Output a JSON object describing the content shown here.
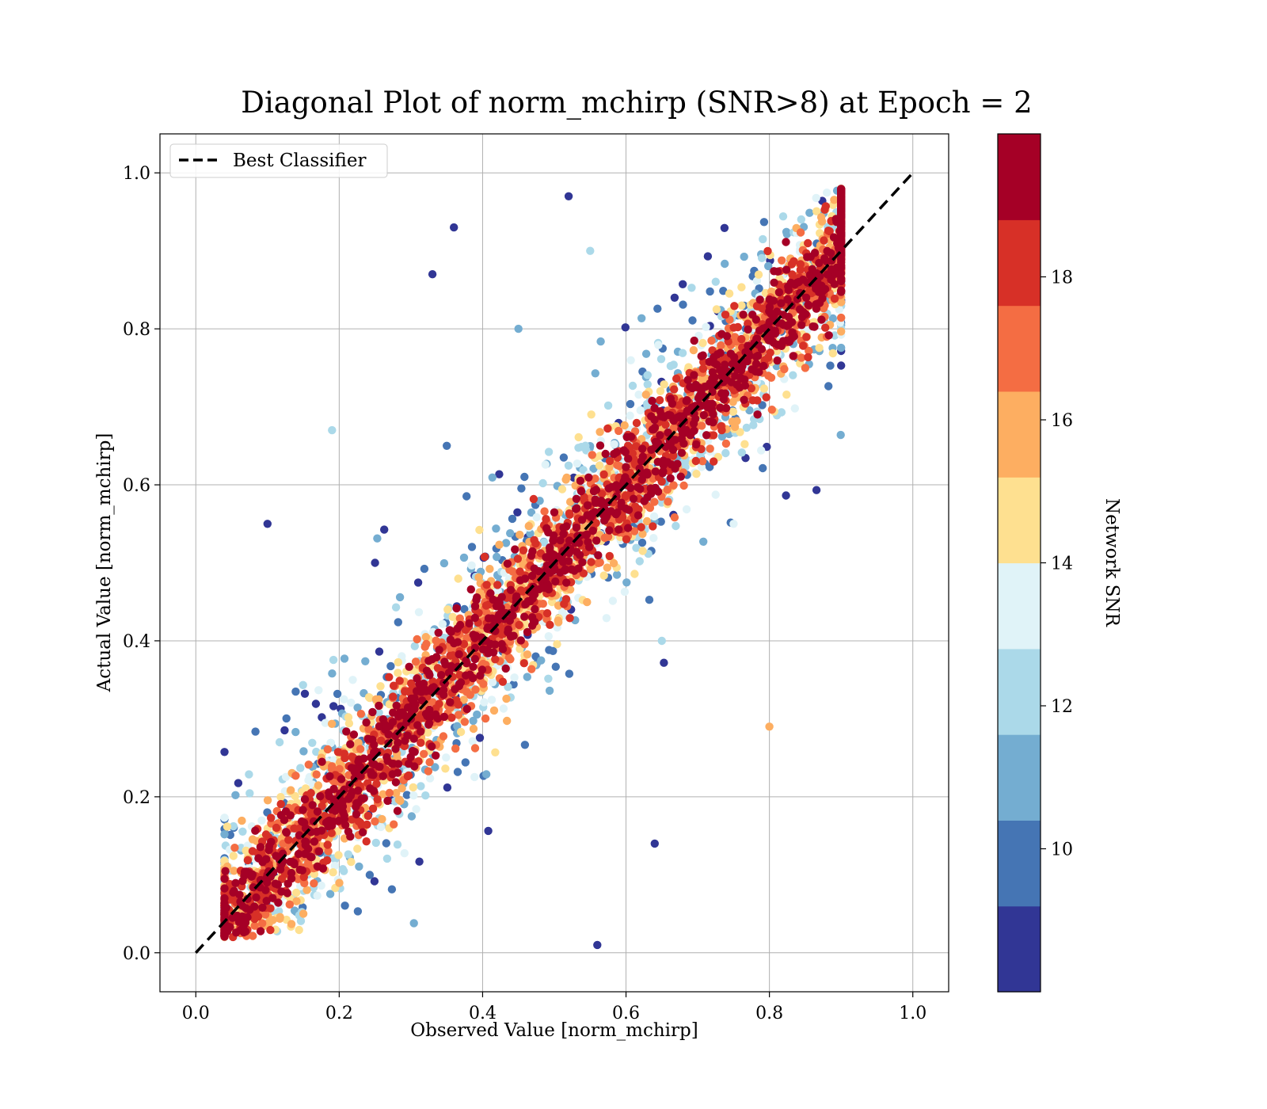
{
  "chart_data": {
    "type": "scatter",
    "title": "Diagonal Plot of norm_mchirp (SNR>8) at Epoch = 2",
    "xlabel": "Observed Value [norm_mchirp]",
    "ylabel": "Actual Value [norm_mchirp]",
    "xlim": [
      -0.05,
      1.05
    ],
    "ylim": [
      -0.05,
      1.05
    ],
    "x_ticks": [
      "0.0",
      "0.2",
      "0.4",
      "0.6",
      "0.8",
      "1.0"
    ],
    "y_ticks": [
      "0.0",
      "0.2",
      "0.4",
      "0.6",
      "0.8",
      "1.0"
    ],
    "grid": true,
    "legend": {
      "placement": "upper-left",
      "entries": [
        "Best Classifier"
      ]
    },
    "reference_line": {
      "name": "Best Classifier",
      "style": "dashed",
      "color": "#000000",
      "x": [
        0.0,
        1.0
      ],
      "y": [
        0.0,
        1.0
      ]
    },
    "colorbar": {
      "label": "Network SNR",
      "range": [
        8,
        20
      ],
      "ticks": [
        "10",
        "12",
        "14",
        "16",
        "18"
      ],
      "tick_values": [
        10,
        12,
        14,
        16,
        18
      ],
      "colors": [
        "#313695",
        "#4575b4",
        "#74add1",
        "#abd9e9",
        "#e0f3f8",
        "#fee090",
        "#fdae61",
        "#f46d43",
        "#d73027",
        "#a50026"
      ]
    },
    "series": [
      {
        "description_points": "scatter of observed vs actual norm_mchirp colored by network SNR; low-SNR points spread widely, high-SNR points cluster along the diagonal",
        "x": [
          0.1,
          0.2,
          0.3,
          0.4,
          0.5,
          0.6,
          0.7,
          0.8,
          0.25,
          0.35,
          0.45,
          0.55,
          0.65,
          0.75,
          0.15,
          0.85,
          0.1,
          0.19,
          0.33,
          0.36,
          0.52,
          0.56,
          0.64,
          0.8,
          0.88
        ],
        "y": [
          0.1,
          0.2,
          0.3,
          0.4,
          0.5,
          0.6,
          0.7,
          0.8,
          0.5,
          0.65,
          0.8,
          0.9,
          0.4,
          0.55,
          0.05,
          0.75,
          0.55,
          0.67,
          0.87,
          0.93,
          0.97,
          0.01,
          0.14,
          0.29,
          0.79
        ],
        "snr": [
          19,
          19,
          19,
          19,
          19,
          19,
          19,
          19,
          9,
          10,
          11,
          12,
          12,
          13,
          16,
          17,
          9,
          12,
          9,
          9,
          9,
          9,
          9,
          16,
          17
        ]
      }
    ]
  }
}
